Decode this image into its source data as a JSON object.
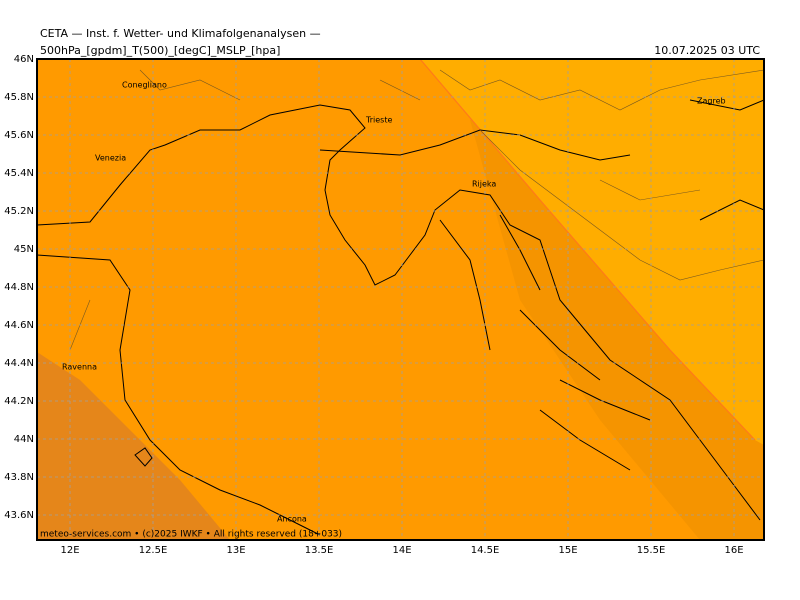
{
  "header": {
    "title": "CETA — Inst. f. Wetter- und Klimafolgenanalysen —",
    "fields": "500hPa_[gpdm]_T(500)_[degC]_MSLP_[hpa]",
    "valid_time": "10.07.2025 03 UTC"
  },
  "map": {
    "lat_ticks": [
      {
        "value": 46,
        "label": "46N"
      },
      {
        "value": 45.8,
        "label": "45.8N"
      },
      {
        "value": 45.6,
        "label": "45.6N"
      },
      {
        "value": 45.4,
        "label": "45.4N"
      },
      {
        "value": 45.2,
        "label": "45.2N"
      },
      {
        "value": 45,
        "label": "45N"
      },
      {
        "value": 44.8,
        "label": "44.8N"
      },
      {
        "value": 44.6,
        "label": "44.6N"
      },
      {
        "value": 44.4,
        "label": "44.4N"
      },
      {
        "value": 44.2,
        "label": "44.2N"
      },
      {
        "value": 44,
        "label": "44N"
      },
      {
        "value": 43.8,
        "label": "43.8N"
      },
      {
        "value": 43.6,
        "label": "43.6N"
      }
    ],
    "lon_ticks": [
      {
        "value": 12,
        "label": "12E"
      },
      {
        "value": 12.5,
        "label": "12.5E"
      },
      {
        "value": 13,
        "label": "13E"
      },
      {
        "value": 13.5,
        "label": "13.5E"
      },
      {
        "value": 14,
        "label": "14E"
      },
      {
        "value": 14.5,
        "label": "14.5E"
      },
      {
        "value": 15,
        "label": "15E"
      },
      {
        "value": 15.5,
        "label": "15.5E"
      },
      {
        "value": 16,
        "label": "16E"
      }
    ],
    "cities": [
      "Conegliano",
      "Venezia",
      "Trieste",
      "Rijeka",
      "Zagreb",
      "Ravenna",
      "Ancona"
    ]
  },
  "footer": "meteo-services.com • (c)2025 IWKF • All rights reserved (18+033)"
}
